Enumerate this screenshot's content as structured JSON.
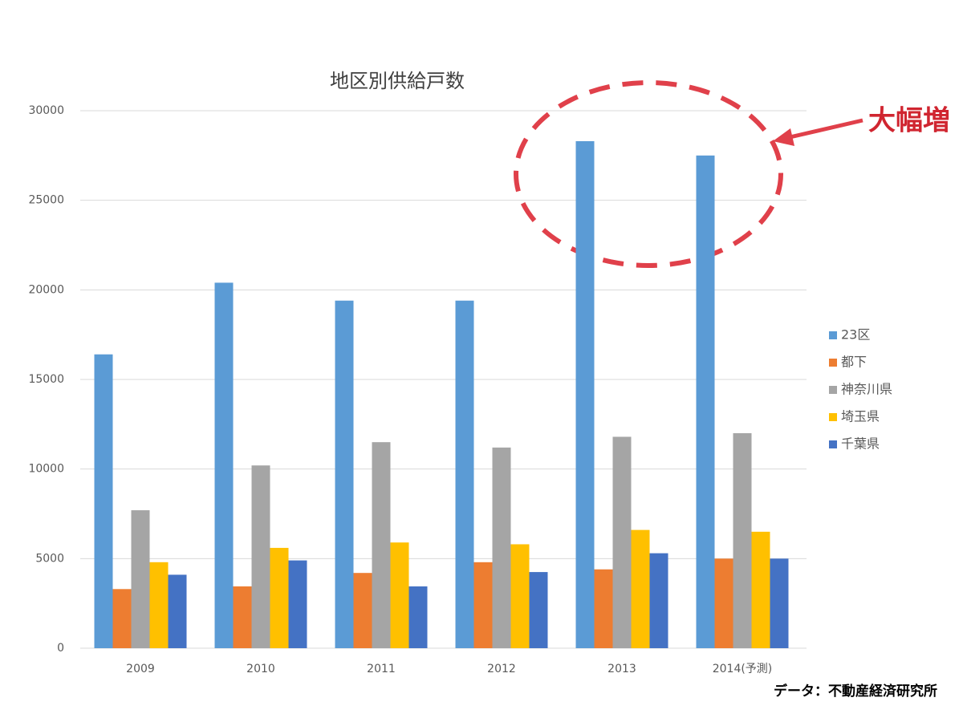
{
  "chart_data": {
    "type": "bar",
    "title": "地区別供給戸数",
    "categories": [
      "2009",
      "2010",
      "2011",
      "2012",
      "2013",
      "2014(予測)"
    ],
    "series": [
      {
        "name": "23区",
        "color": "#5b9bd5",
        "values": [
          16400,
          20400,
          19400,
          19400,
          28300,
          27500
        ]
      },
      {
        "name": "都下",
        "color": "#ed7d31",
        "values": [
          3300,
          3450,
          4200,
          4800,
          4400,
          5000
        ]
      },
      {
        "name": "神奈川県",
        "color": "#a5a5a5",
        "values": [
          7700,
          10200,
          11500,
          11200,
          11800,
          12000
        ]
      },
      {
        "name": "埼玉県",
        "color": "#ffc000",
        "values": [
          4800,
          5600,
          5900,
          5800,
          6600,
          6500
        ]
      },
      {
        "name": "千葉県",
        "color": "#4472c4",
        "values": [
          4100,
          4900,
          3450,
          4250,
          5300,
          5000
        ]
      }
    ],
    "ylim": [
      0,
      30000
    ],
    "yticks": [
      0,
      5000,
      10000,
      15000,
      20000,
      25000,
      30000
    ],
    "grid": true,
    "legend": "right",
    "annotation": "大幅増",
    "source": "データ：不動産経済研究所"
  }
}
